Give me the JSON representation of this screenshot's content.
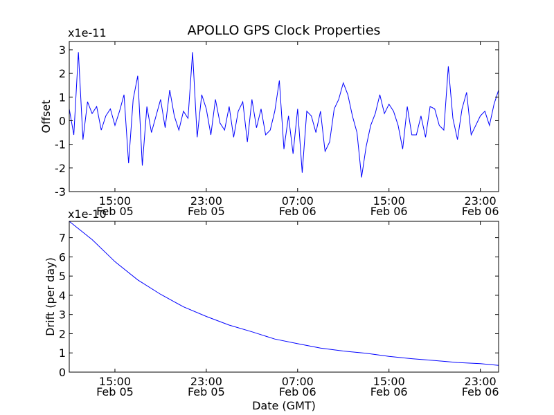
{
  "chart_data": [
    {
      "type": "line",
      "title": "APOLLO GPS Clock Properties",
      "xlabel": "",
      "ylabel": "Offset",
      "y_scale_label": "x1e-11",
      "ylim": [
        -3,
        3.35
      ],
      "y_ticks": [
        -3,
        -2,
        -1,
        0,
        1,
        2,
        3
      ],
      "x_unit": "hours since Feb 05 11:00 GMT",
      "xlim": [
        0,
        37.6
      ],
      "x_ticks": [
        {
          "t": 4,
          "line1": "15:00",
          "line2": "Feb 05"
        },
        {
          "t": 12,
          "line1": "23:00",
          "line2": "Feb 05"
        },
        {
          "t": 20,
          "line1": "07:00",
          "line2": "Feb 06"
        },
        {
          "t": 28,
          "line1": "15:00",
          "line2": "Feb 06"
        },
        {
          "t": 36,
          "line1": "23:00",
          "line2": "Feb 06"
        }
      ],
      "series": [
        {
          "name": "offset",
          "color": "#0000ff",
          "x": [
            0,
            0.4,
            0.8,
            1.2,
            1.6,
            2,
            2.4,
            2.8,
            3.2,
            3.6,
            4,
            4.4,
            4.8,
            5.2,
            5.6,
            6,
            6.4,
            6.8,
            7.2,
            7.6,
            8,
            8.4,
            8.8,
            9.2,
            9.6,
            10,
            10.4,
            10.8,
            11.2,
            11.6,
            12,
            12.4,
            12.8,
            13.2,
            13.6,
            14,
            14.4,
            14.8,
            15.2,
            15.6,
            16,
            16.4,
            16.8,
            17.2,
            17.6,
            18,
            18.4,
            18.8,
            19.2,
            19.6,
            20,
            20.4,
            20.8,
            21.2,
            21.6,
            22,
            22.4,
            22.8,
            23.2,
            23.6,
            24,
            24.4,
            24.8,
            25.2,
            25.6,
            26,
            26.4,
            26.8,
            27.2,
            27.6,
            28,
            28.4,
            28.8,
            29.2,
            29.6,
            30,
            30.4,
            30.8,
            31.2,
            31.6,
            32,
            32.4,
            32.8,
            33.2,
            33.6,
            34,
            34.4,
            34.8,
            35.2,
            35.6,
            36,
            36.4,
            36.8,
            37.2,
            37.6
          ],
          "y": [
            0.5,
            -0.6,
            2.9,
            -0.8,
            0.8,
            0.3,
            0.6,
            -0.4,
            0.2,
            0.5,
            -0.2,
            0.4,
            1.1,
            -1.8,
            0.9,
            1.9,
            -1.9,
            0.6,
            -0.5,
            0.2,
            0.9,
            -0.3,
            1.3,
            0.2,
            -0.4,
            0.4,
            0.1,
            2.9,
            -0.7,
            1.1,
            0.5,
            -0.6,
            0.9,
            -0.1,
            -0.4,
            0.6,
            -0.7,
            0.4,
            0.8,
            -0.9,
            0.9,
            -0.3,
            0.5,
            -0.6,
            -0.4,
            0.4,
            1.7,
            -1.2,
            0.2,
            -1.4,
            0.5,
            -2.2,
            0.4,
            0.2,
            -0.5,
            0.4,
            -1.3,
            -0.9,
            0.5,
            0.9,
            1.6,
            1.1,
            0.2,
            -0.5,
            -2.4,
            -1.1,
            -0.2,
            0.3,
            1.1,
            0.3,
            0.7,
            0.4,
            -0.2,
            -1.2,
            0.6,
            -0.6,
            -0.6,
            0.2,
            -0.7,
            0.6,
            0.5,
            -0.2,
            -0.4,
            2.3,
            0.1,
            -0.8,
            0.5,
            1.2,
            -0.6,
            -0.2,
            0.2,
            0.4,
            -0.2,
            0.7,
            1.3
          ]
        }
      ]
    },
    {
      "type": "line",
      "title": "",
      "xlabel": "Date (GMT)",
      "ylabel": "Drift (per day)",
      "y_scale_label": "x1e-10",
      "ylim": [
        0,
        7.85
      ],
      "y_ticks": [
        0,
        1,
        2,
        3,
        4,
        5,
        6,
        7
      ],
      "x_unit": "hours since Feb 05 11:00 GMT",
      "xlim": [
        0,
        37.6
      ],
      "x_ticks": [
        {
          "t": 4,
          "line1": "15:00",
          "line2": "Feb 05"
        },
        {
          "t": 12,
          "line1": "23:00",
          "line2": "Feb 05"
        },
        {
          "t": 20,
          "line1": "07:00",
          "line2": "Feb 06"
        },
        {
          "t": 28,
          "line1": "15:00",
          "line2": "Feb 06"
        },
        {
          "t": 36,
          "line1": "23:00",
          "line2": "Feb 06"
        }
      ],
      "series": [
        {
          "name": "drift",
          "color": "#0000ff",
          "x": [
            0,
            2,
            4,
            6,
            8,
            10,
            12,
            14,
            16,
            18,
            20,
            22,
            24,
            26,
            28,
            30,
            32,
            34,
            36,
            37.6
          ],
          "y": [
            7.85,
            6.9,
            5.75,
            4.8,
            4.05,
            3.4,
            2.9,
            2.45,
            2.1,
            1.72,
            1.48,
            1.25,
            1.1,
            0.98,
            0.82,
            0.7,
            0.6,
            0.5,
            0.44,
            0.35
          ]
        }
      ]
    }
  ]
}
